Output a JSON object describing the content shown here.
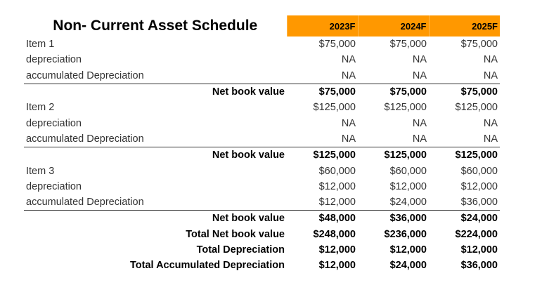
{
  "title": "Non- Current Asset Schedule",
  "headers": [
    "2023F",
    "2024F",
    "2025F"
  ],
  "rows": [
    {
      "label": "Item 1",
      "values": [
        "$75,000",
        "$75,000",
        "$75,000"
      ]
    },
    {
      "label": "depreciation",
      "values": [
        "NA",
        "NA",
        "NA"
      ]
    },
    {
      "label": "accumulated Depreciation",
      "values": [
        "NA",
        "NA",
        "NA"
      ]
    },
    {
      "label": "Net book value",
      "values": [
        "$75,000",
        "$75,000",
        "$75,000"
      ]
    },
    {
      "label": "Item 2",
      "values": [
        "$125,000",
        "$125,000",
        "$125,000"
      ]
    },
    {
      "label": "depreciation",
      "values": [
        "NA",
        "NA",
        "NA"
      ]
    },
    {
      "label": "accumulated Depreciation",
      "values": [
        "NA",
        "NA",
        "NA"
      ]
    },
    {
      "label": "Net book value",
      "values": [
        "$125,000",
        "$125,000",
        "$125,000"
      ]
    },
    {
      "label": "Item 3",
      "values": [
        "$60,000",
        "$60,000",
        "$60,000"
      ]
    },
    {
      "label": "depreciation",
      "values": [
        "$12,000",
        "$12,000",
        "$12,000"
      ]
    },
    {
      "label": "accumulated Depreciation",
      "values": [
        "$12,000",
        "$24,000",
        "$36,000"
      ]
    },
    {
      "label": "Net book value",
      "values": [
        "$48,000",
        "$36,000",
        "$24,000"
      ]
    },
    {
      "label": "Total Net book value",
      "values": [
        "$248,000",
        "$236,000",
        "$224,000"
      ]
    },
    {
      "label": "Total Depreciation",
      "values": [
        "$12,000",
        "$12,000",
        "$12,000"
      ]
    },
    {
      "label": "Total Accumulated Depreciation",
      "values": [
        "$12,000",
        "$24,000",
        "$36,000"
      ]
    }
  ],
  "colors": {
    "header_fill": "#ff9800"
  }
}
